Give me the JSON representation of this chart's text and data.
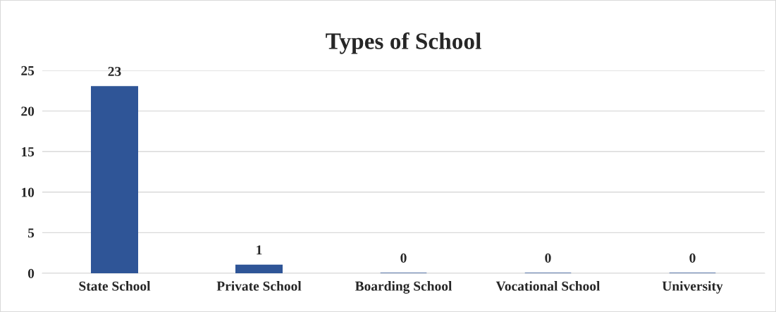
{
  "chart_data": {
    "type": "bar",
    "title": "Types of School",
    "categories": [
      "State School",
      "Private School",
      "Boarding School",
      "Vocational School",
      "University"
    ],
    "values": [
      23,
      1,
      0,
      0,
      0
    ],
    "color": "#2f5597",
    "ylim": [
      0,
      25
    ],
    "yticks": [
      0,
      5,
      10,
      15,
      20,
      25
    ],
    "grid": "y",
    "data_labels": true
  }
}
